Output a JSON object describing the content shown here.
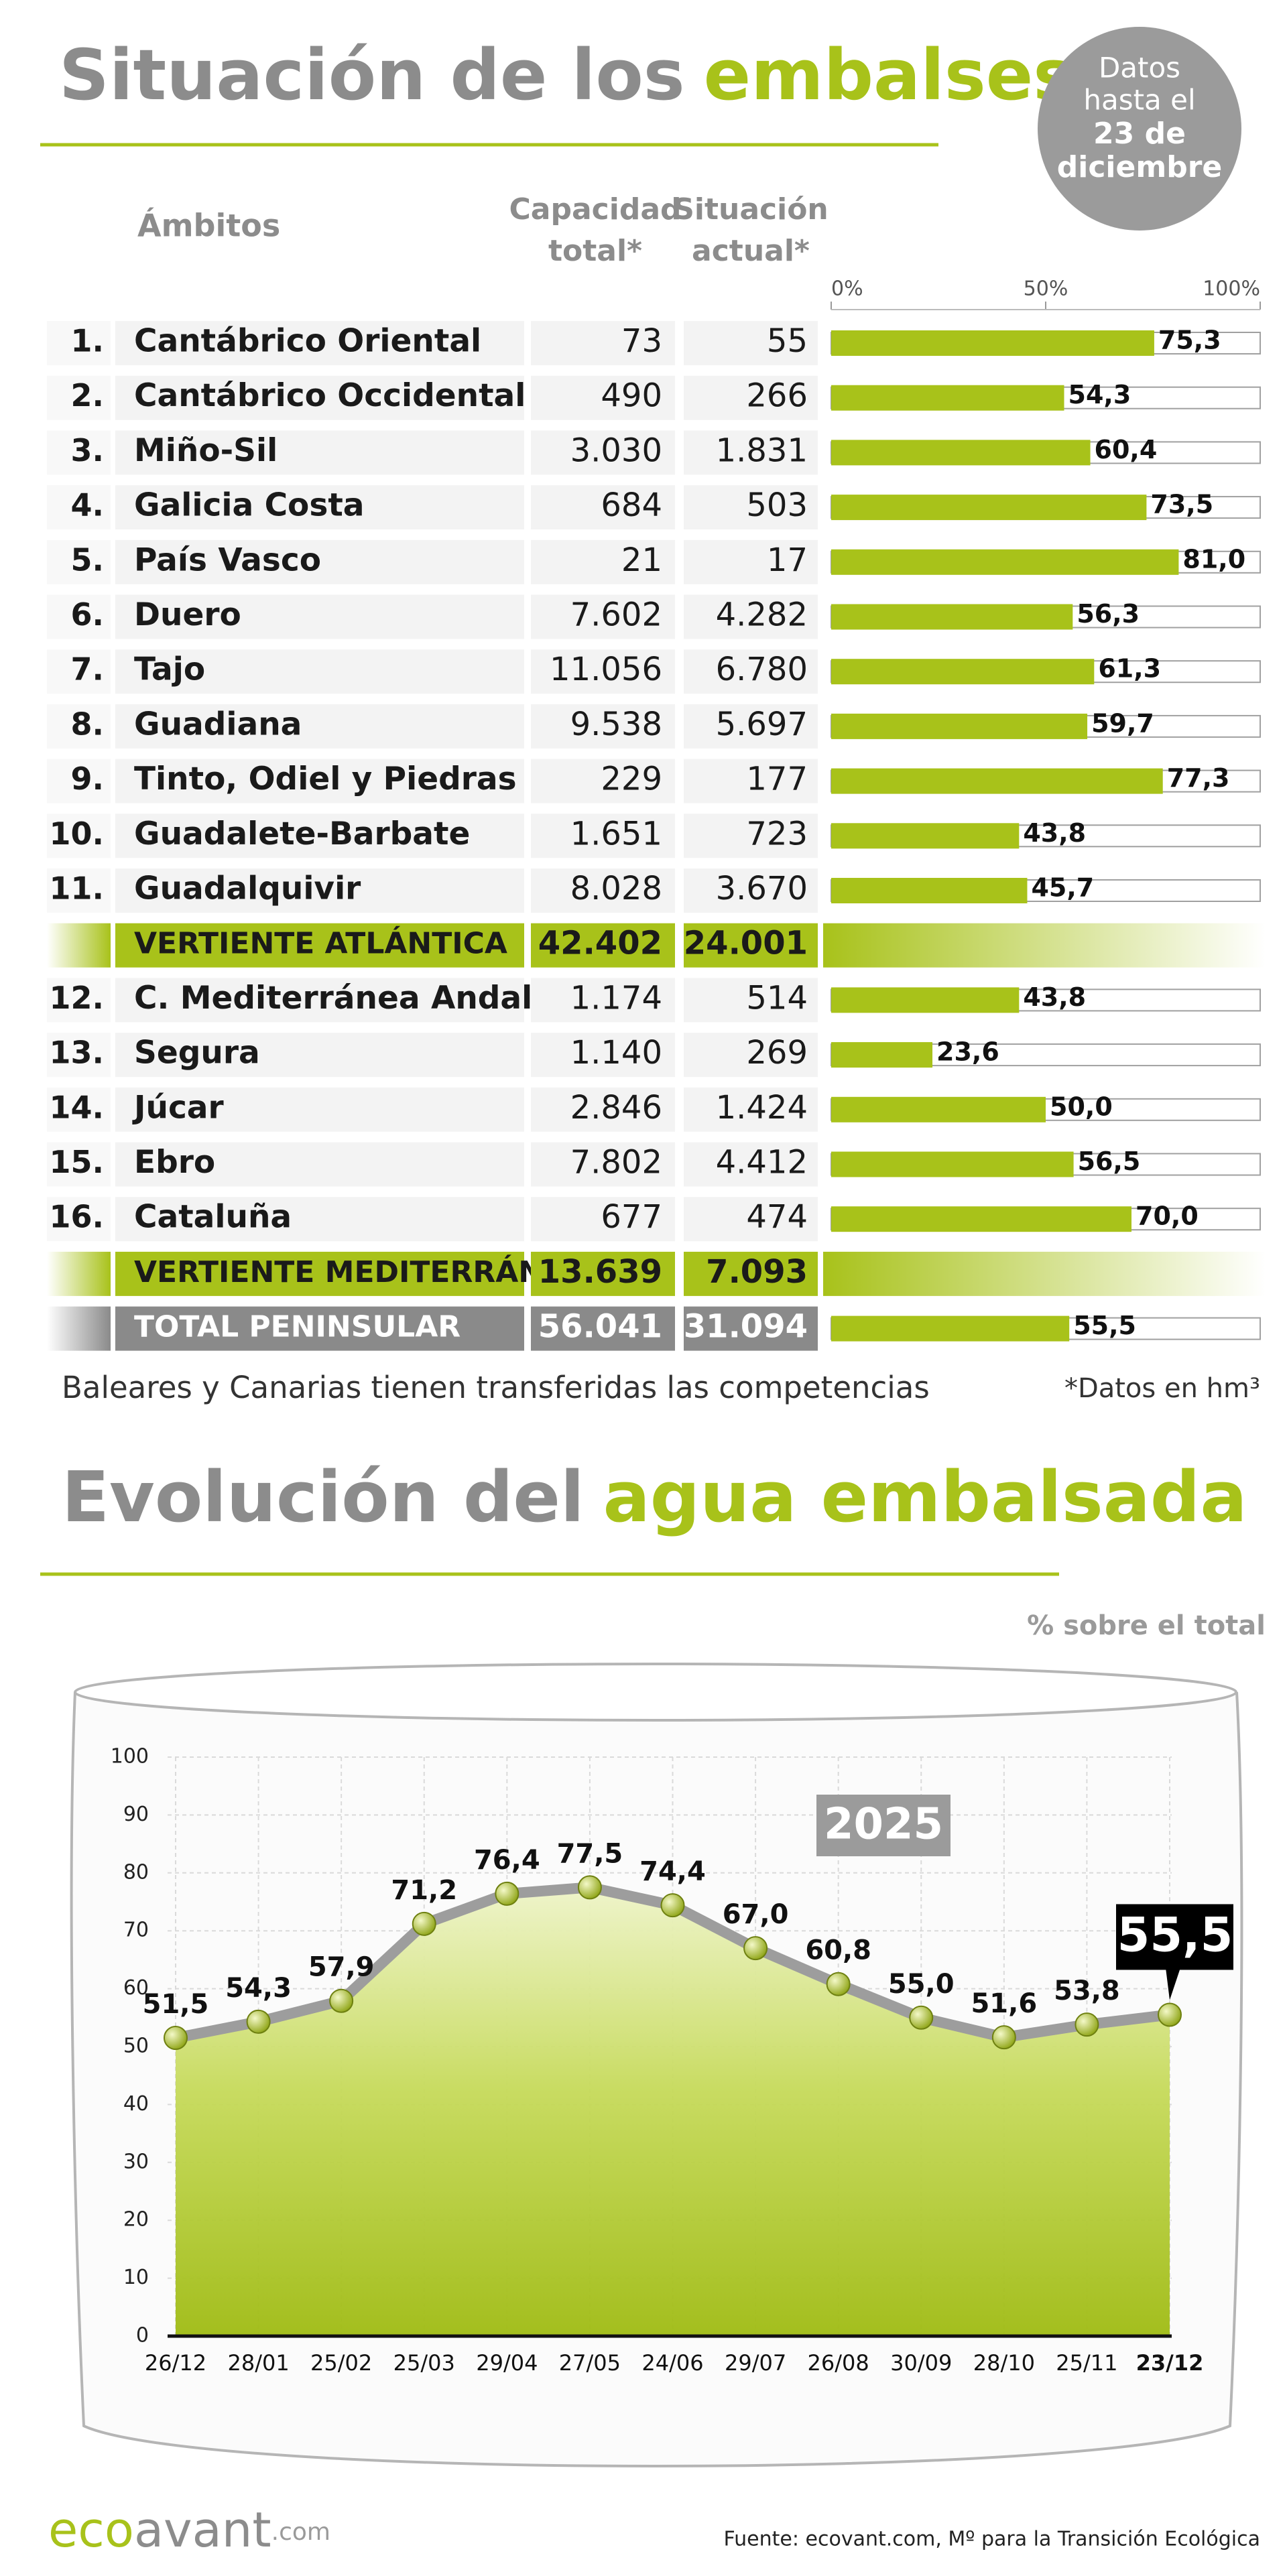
{
  "header": {
    "title": [
      "Situación de los",
      "embalses"
    ],
    "badge": [
      "Datos",
      "hasta el",
      "23 de",
      "diciembre"
    ]
  },
  "table": {
    "columns": [
      [
        "Ámbitos"
      ],
      [
        "Capacidad",
        "total*"
      ],
      [
        "Situación",
        "actual*"
      ]
    ],
    "bar_color": "#a8c21a",
    "xlim": [
      0,
      100
    ],
    "xticks": [
      {
        "value": 0,
        "label": "0%"
      },
      {
        "value": 50,
        "label": "50%"
      },
      {
        "value": 100,
        "label": "100%"
      }
    ],
    "rows": [
      {
        "num": "1.",
        "name": "Cantábrico Oriental",
        "capacity": "73",
        "current": "55",
        "pct": 75.3,
        "pct_label": "75,3"
      },
      {
        "num": "2.",
        "name": "Cantábrico Occidental",
        "capacity": "490",
        "current": "266",
        "pct": 54.3,
        "pct_label": "54,3"
      },
      {
        "num": "3.",
        "name": "Miño-Sil",
        "capacity": "3.030",
        "current": "1.831",
        "pct": 60.4,
        "pct_label": "60,4"
      },
      {
        "num": "4.",
        "name": "Galicia Costa",
        "capacity": "684",
        "current": "503",
        "pct": 73.5,
        "pct_label": "73,5"
      },
      {
        "num": "5.",
        "name": "País Vasco",
        "capacity": "21",
        "current": "17",
        "pct": 81.0,
        "pct_label": "81,0"
      },
      {
        "num": "6.",
        "name": "Duero",
        "capacity": "7.602",
        "current": "4.282",
        "pct": 56.3,
        "pct_label": "56,3"
      },
      {
        "num": "7.",
        "name": "Tajo",
        "capacity": "11.056",
        "current": "6.780",
        "pct": 61.3,
        "pct_label": "61,3"
      },
      {
        "num": "8.",
        "name": "Guadiana",
        "capacity": "9.538",
        "current": "5.697",
        "pct": 59.7,
        "pct_label": "59,7"
      },
      {
        "num": "9.",
        "name": "Tinto, Odiel y Piedras",
        "capacity": "229",
        "current": "177",
        "pct": 77.3,
        "pct_label": "77,3"
      },
      {
        "num": "10.",
        "name": "Guadalete-Barbate",
        "capacity": "1.651",
        "current": "723",
        "pct": 43.8,
        "pct_label": "43,8"
      },
      {
        "num": "11.",
        "name": "Guadalquivir",
        "capacity": "8.028",
        "current": "3.670",
        "pct": 45.7,
        "pct_label": "45,7"
      },
      {
        "name": "VERTIENTE ATLÁNTICA",
        "capacity": "42.402",
        "current": "24.001"
      },
      {
        "num": "12.",
        "name": "C. Mediterránea Andaluza",
        "capacity": "1.174",
        "current": "514",
        "pct": 43.8,
        "pct_label": "43,8"
      },
      {
        "num": "13.",
        "name": "Segura",
        "capacity": "1.140",
        "current": "269",
        "pct": 23.6,
        "pct_label": "23,6"
      },
      {
        "num": "14.",
        "name": "Júcar",
        "capacity": "2.846",
        "current": "1.424",
        "pct": 50.0,
        "pct_label": "50,0"
      },
      {
        "num": "15.",
        "name": "Ebro",
        "capacity": "7.802",
        "current": "4.412",
        "pct": 56.5,
        "pct_label": "56,5"
      },
      {
        "num": "16.",
        "name": "Cataluña",
        "capacity": "677",
        "current": "474",
        "pct": 70.0,
        "pct_label": "70,0"
      },
      {
        "name": "VERTIENTE MEDITERRÁNEA",
        "capacity": "13.639",
        "current": "7.093"
      },
      {
        "name": "TOTAL PENINSULAR",
        "capacity": "56.041",
        "current": "31.094",
        "pct": 55.5,
        "pct_label": "55,5"
      }
    ],
    "note": "Baleares y Canarias tienen transferidas las competencias",
    "footnote": "*Datos en hm³"
  },
  "chart_data": {
    "type": "line",
    "title": [
      "Evolución del",
      "agua embalsada"
    ],
    "subtitle": "% sobre el total",
    "annotation": "2025",
    "categories": [
      "26/12",
      "28/01",
      "25/02",
      "25/03",
      "29/04",
      "27/05",
      "24/06",
      "29/07",
      "26/08",
      "30/09",
      "28/10",
      "25/11",
      "23/12"
    ],
    "values": [
      51.5,
      54.3,
      57.9,
      71.2,
      76.4,
      77.5,
      74.4,
      67.0,
      60.8,
      55.0,
      51.6,
      53.8,
      55.5
    ],
    "value_labels": [
      "51,5",
      "54,3",
      "57,9",
      "71,2",
      "76,4",
      "77,5",
      "74,4",
      "67,0",
      "60,8",
      "55,0",
      "51,6",
      "53,8",
      "55,5"
    ],
    "color": "#a8c21a",
    "ylim": [
      0,
      100
    ],
    "yticks": [
      0,
      10,
      20,
      30,
      40,
      50,
      60,
      70,
      80,
      90,
      100
    ],
    "grid": true
  },
  "footer": {
    "logo": [
      "eco",
      "avant",
      ".com"
    ],
    "source": "Fuente: ecovant.com, Mº para la Transición Ecológica"
  }
}
